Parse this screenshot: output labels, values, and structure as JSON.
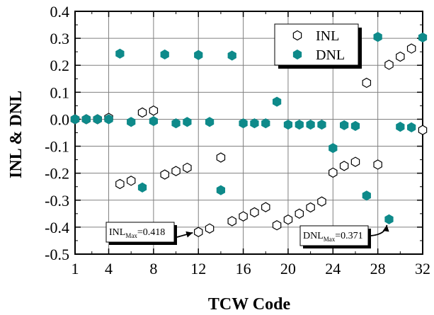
{
  "chart_data": {
    "type": "scatter",
    "xlabel": "TCW Code",
    "ylabel": "INL & DNL",
    "xlim": [
      1,
      32
    ],
    "ylim": [
      -0.5,
      0.4
    ],
    "xticks": [
      1,
      4,
      8,
      12,
      16,
      20,
      24,
      28,
      32
    ],
    "yticks": [
      -0.5,
      -0.4,
      -0.3,
      -0.2,
      -0.1,
      0.0,
      0.1,
      0.2,
      0.3,
      0.4
    ],
    "ytick_labels": [
      "-0.5",
      "-0.4",
      "-0.3",
      "-0.2",
      "-0.1",
      "0.0",
      "0.1",
      "0.2",
      "0.3",
      "0.4"
    ],
    "grid": true,
    "legend_position": "top-right",
    "series": [
      {
        "name": "INL",
        "marker": "hexagon-open",
        "color": "#000000",
        "x": [
          1,
          2,
          3,
          4,
          5,
          6,
          7,
          8,
          9,
          10,
          11,
          12,
          13,
          14,
          15,
          16,
          17,
          18,
          19,
          20,
          21,
          22,
          23,
          24,
          25,
          26,
          27,
          28,
          29,
          30,
          31,
          32
        ],
        "y": [
          0.0,
          0.0,
          0.0,
          0.005,
          -0.24,
          -0.228,
          0.025,
          0.032,
          -0.205,
          -0.192,
          -0.18,
          -0.418,
          -0.405,
          -0.142,
          -0.378,
          -0.36,
          -0.345,
          -0.326,
          -0.393,
          -0.372,
          -0.35,
          -0.327,
          -0.305,
          -0.198,
          -0.173,
          -0.158,
          0.135,
          -0.168,
          0.202,
          0.232,
          0.262,
          -0.04
        ]
      },
      {
        "name": "DNL",
        "marker": "hexagon-filled",
        "color": "#0e8a8a",
        "x": [
          1,
          2,
          3,
          4,
          5,
          6,
          7,
          8,
          9,
          10,
          11,
          12,
          13,
          14,
          15,
          16,
          17,
          18,
          19,
          20,
          21,
          22,
          23,
          24,
          25,
          26,
          27,
          28,
          29,
          30,
          31,
          32
        ],
        "y": [
          0.0,
          0.0,
          0.0,
          0.0,
          0.243,
          -0.01,
          -0.253,
          -0.007,
          0.24,
          -0.015,
          -0.01,
          0.238,
          -0.01,
          -0.263,
          0.236,
          -0.015,
          -0.015,
          -0.015,
          0.065,
          -0.02,
          -0.02,
          -0.02,
          -0.02,
          -0.107,
          -0.022,
          -0.025,
          -0.283,
          0.305,
          -0.371,
          -0.028,
          -0.03,
          0.303
        ]
      }
    ],
    "annotations": [
      {
        "base": "INL",
        "sub": "Max",
        "value": "=0.418",
        "target_x": 12,
        "target_y": -0.418
      },
      {
        "base": "DNL",
        "sub": "Max",
        "value": "=0.371",
        "target_x": 29,
        "target_y": -0.371
      }
    ]
  }
}
